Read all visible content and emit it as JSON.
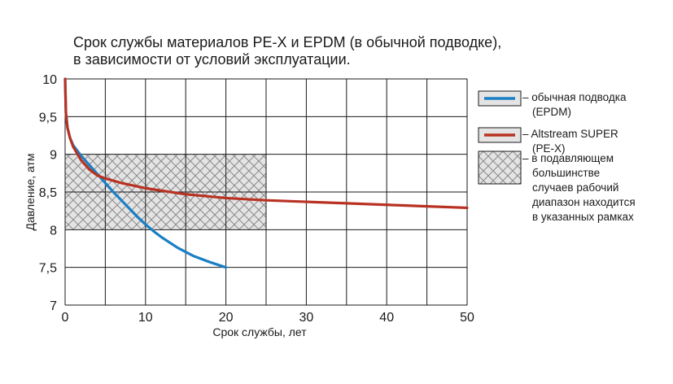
{
  "chart_data": {
    "type": "line",
    "title_lines": [
      "Срок службы материалов PE-X и EPDM (в обычной подводке),",
      "в зависимости от условий эксплуатации."
    ],
    "xlabel": "Срок службы, лет",
    "ylabel": "Давление, атм",
    "xlim": [
      0,
      50
    ],
    "ylim": [
      7,
      10
    ],
    "x_ticks": [
      0,
      10,
      20,
      30,
      40,
      50
    ],
    "x_tick_labels": [
      "0",
      "10",
      "20",
      "30",
      "40",
      "50"
    ],
    "y_ticks": [
      7,
      7.5,
      8,
      8.5,
      9,
      9.5,
      10
    ],
    "y_tick_labels": [
      "7",
      "7,5",
      "8",
      "8,5",
      "9",
      "9,5",
      "10"
    ],
    "grid": true,
    "grid_x_step": 5,
    "grid_y_step": 0.5,
    "series": [
      {
        "name_lines": [
          "– обычная подводка",
          "(EPDM)"
        ],
        "color": "#1a7fc4",
        "points": [
          [
            0,
            10
          ],
          [
            0.1,
            9.55
          ],
          [
            0.3,
            9.35
          ],
          [
            0.6,
            9.22
          ],
          [
            1,
            9.12
          ],
          [
            2,
            8.98
          ],
          [
            3,
            8.86
          ],
          [
            4,
            8.74
          ],
          [
            5,
            8.62
          ],
          [
            6,
            8.5
          ],
          [
            7,
            8.39
          ],
          [
            8,
            8.28
          ],
          [
            9,
            8.17
          ],
          [
            10,
            8.07
          ],
          [
            11,
            7.98
          ],
          [
            12,
            7.9
          ],
          [
            14,
            7.76
          ],
          [
            16,
            7.65
          ],
          [
            18,
            7.57
          ],
          [
            20,
            7.5
          ]
        ]
      },
      {
        "name_lines": [
          "– Altstream SUPER",
          "(PE-X)"
        ],
        "color": "#b83222",
        "points": [
          [
            0,
            10
          ],
          [
            0.1,
            9.55
          ],
          [
            0.3,
            9.35
          ],
          [
            0.6,
            9.22
          ],
          [
            1,
            9.1
          ],
          [
            2,
            8.92
          ],
          [
            3,
            8.8
          ],
          [
            4,
            8.72
          ],
          [
            5,
            8.68
          ],
          [
            7,
            8.62
          ],
          [
            10,
            8.55
          ],
          [
            15,
            8.47
          ],
          [
            20,
            8.42
          ],
          [
            25,
            8.39
          ],
          [
            30,
            8.37
          ],
          [
            35,
            8.35
          ],
          [
            40,
            8.33
          ],
          [
            45,
            8.31
          ],
          [
            50,
            8.29
          ]
        ]
      }
    ],
    "hatched_region": {
      "x_range": [
        0,
        25
      ],
      "y_range": [
        8,
        9
      ],
      "label_lines": [
        "– в подавляющем",
        "большинстве",
        "случаев рабочий",
        "диапазон находится",
        "в указанных рамках"
      ]
    },
    "legend_placement": "right"
  }
}
